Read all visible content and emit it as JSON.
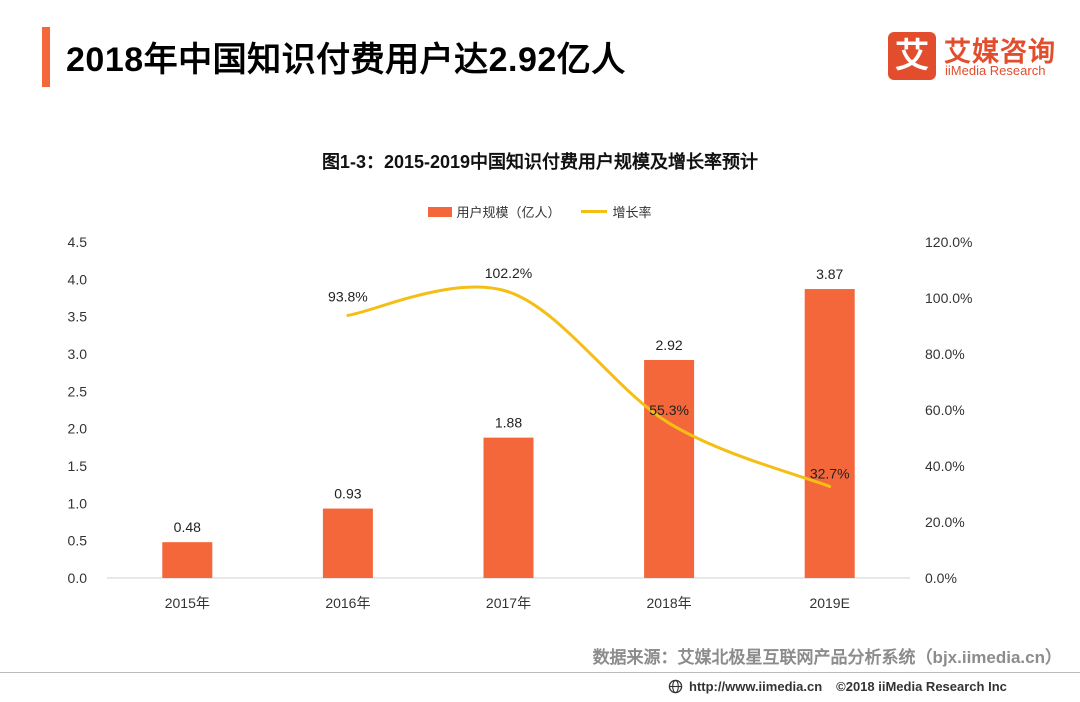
{
  "page": {
    "title": "2018年中国知识付费用户达2.92亿人",
    "accent_color": "#F4673B"
  },
  "logo": {
    "mark": "艾",
    "name_cn": "艾媒咨询",
    "name_en": "iiMedia Research",
    "color": "#E24E2D"
  },
  "chart_data": {
    "type": "bar",
    "title": "图1-3：2015-2019中国知识付费用户规模及增长率预计",
    "categories": [
      "2015年",
      "2016年",
      "2017年",
      "2018年",
      "2019E"
    ],
    "series": [
      {
        "name": "用户规模（亿人）",
        "type": "bar",
        "axis": "left",
        "color": "#F4673B",
        "values": [
          0.48,
          0.93,
          1.88,
          2.92,
          3.87
        ],
        "labels": [
          "0.48",
          "0.93",
          "1.88",
          "2.92",
          "3.87"
        ]
      },
      {
        "name": "增长率",
        "type": "line",
        "axis": "right",
        "color": "#F5BE15",
        "values": [
          null,
          93.8,
          102.2,
          55.3,
          32.7
        ],
        "labels": [
          "",
          "93.8%",
          "102.2%",
          "55.3%",
          "32.7%"
        ]
      }
    ],
    "y_left": {
      "range": [
        0,
        4.5
      ],
      "ticks": [
        "0.0",
        "0.5",
        "1.0",
        "1.5",
        "2.0",
        "2.5",
        "3.0",
        "3.5",
        "4.0",
        "4.5"
      ]
    },
    "y_right": {
      "range": [
        0,
        120
      ],
      "ticks": [
        "0.0%",
        "20.0%",
        "40.0%",
        "60.0%",
        "80.0%",
        "100.0%",
        "120.0%"
      ]
    },
    "grid": false,
    "legend_position": "top-center"
  },
  "source": "数据来源：艾媒北极星互联网产品分析系统（bjx.iimedia.cn）",
  "footer": {
    "url": "http://www.iimedia.cn",
    "copyright": "©2018  iiMedia Research Inc"
  }
}
